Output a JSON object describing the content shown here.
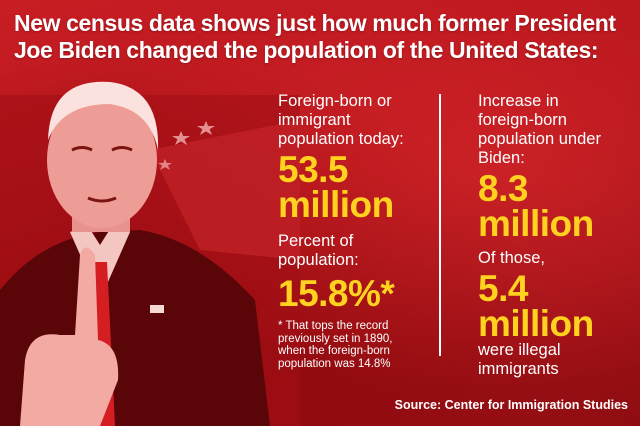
{
  "headline": {
    "line1": "New census data shows just how much former President",
    "line2": "Joe Biden changed the population of the United States:"
  },
  "left": {
    "label1_l1": "Foreign-born or",
    "label1_l2": "immigrant",
    "label1_l3": "population today:",
    "value1_l1": "53.5",
    "value1_l2": "million",
    "label2_l1": "Percent of",
    "label2_l2": "population:",
    "value2": "15.8%*",
    "note_l1": "* That tops the record",
    "note_l2": "previously set in 1890,",
    "note_l3": "when the foreign-born",
    "note_l4": "population was 14.8%"
  },
  "right": {
    "label1_l1": "Increase in",
    "label1_l2": "foreign-born",
    "label1_l3": "population under",
    "label1_l4": "Biden:",
    "value1_l1": "8.3",
    "value1_l2": "million",
    "label2": "Of those,",
    "value2_l1": "5.4",
    "value2_l2": "million",
    "label3_l1": "were illegal",
    "label3_l2": "immigrants"
  },
  "source": "Source: Center for Immigration Studies",
  "colors": {
    "background": "#b3141b",
    "accent": "#ffd21f",
    "text": "#ffffff"
  }
}
